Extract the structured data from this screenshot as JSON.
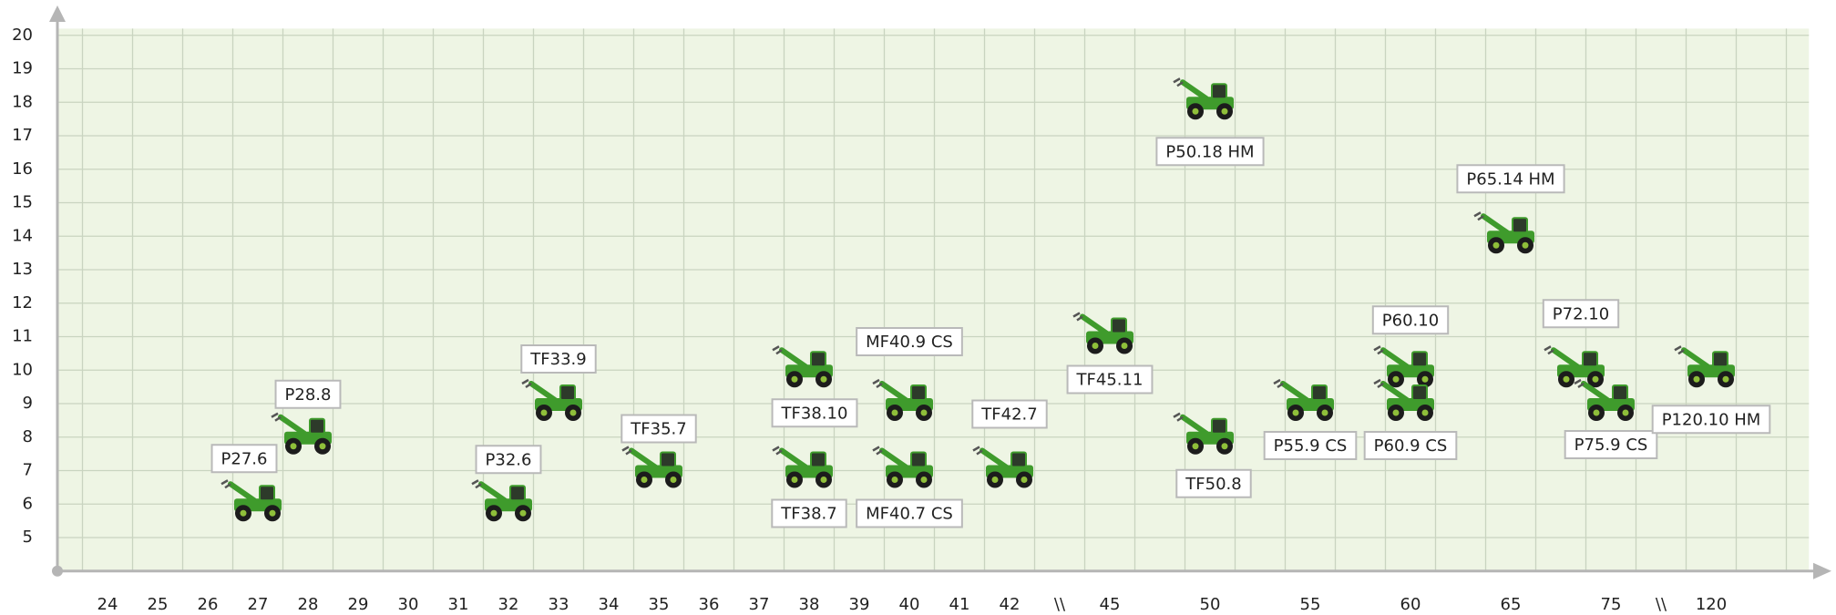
{
  "chart_data": {
    "type": "scatter",
    "categories": [
      "24",
      "25",
      "26",
      "27",
      "28",
      "29",
      "30",
      "31",
      "32",
      "33",
      "34",
      "35",
      "36",
      "37",
      "38",
      "39",
      "40",
      "41",
      "42",
      "\\\\",
      "45",
      null,
      "50",
      null,
      "55",
      null,
      "60",
      null,
      "65",
      null,
      "75",
      "\\\\",
      "120"
    ],
    "ylim": [
      4,
      20.2
    ],
    "yticks": [
      5,
      6,
      7,
      8,
      9,
      10,
      11,
      12,
      13,
      14,
      15,
      16,
      17,
      18,
      19,
      20
    ],
    "grid": true,
    "color": "#3f9b2c",
    "points": [
      {
        "name": "P27.6",
        "x": 27,
        "y": 6
      },
      {
        "name": "P28.8",
        "x": 28,
        "y": 8
      },
      {
        "name": "P32.6",
        "x": 32,
        "y": 6
      },
      {
        "name": "TF33.9",
        "x": 33,
        "y": 9
      },
      {
        "name": "TF35.7",
        "x": 35,
        "y": 7
      },
      {
        "name": "TF38.10",
        "x": 38,
        "y": 10
      },
      {
        "name": "TF38.7",
        "x": 38,
        "y": 7
      },
      {
        "name": "MF40.9 CS",
        "x": 40,
        "y": 9
      },
      {
        "name": "MF40.7 CS",
        "x": 40,
        "y": 7
      },
      {
        "name": "TF42.7",
        "x": 42,
        "y": 7
      },
      {
        "name": "TF45.11",
        "x": 45,
        "y": 11
      },
      {
        "name": "P50.18 HM",
        "x": 50,
        "y": 18
      },
      {
        "name": "TF50.8",
        "x": 50,
        "y": 8
      },
      {
        "name": "P55.9 CS",
        "x": 55,
        "y": 9
      },
      {
        "name": "P60.10",
        "x": 60,
        "y": 10
      },
      {
        "name": "P60.9 CS",
        "x": 60,
        "y": 9
      },
      {
        "name": "P65.14 HM",
        "x": 65,
        "y": 14
      },
      {
        "name": "P72.10",
        "x": 72,
        "y": 10
      },
      {
        "name": "P75.9 CS",
        "x": 75,
        "y": 9
      },
      {
        "name": "P120.10 HM",
        "x": 120,
        "y": 10
      }
    ]
  }
}
